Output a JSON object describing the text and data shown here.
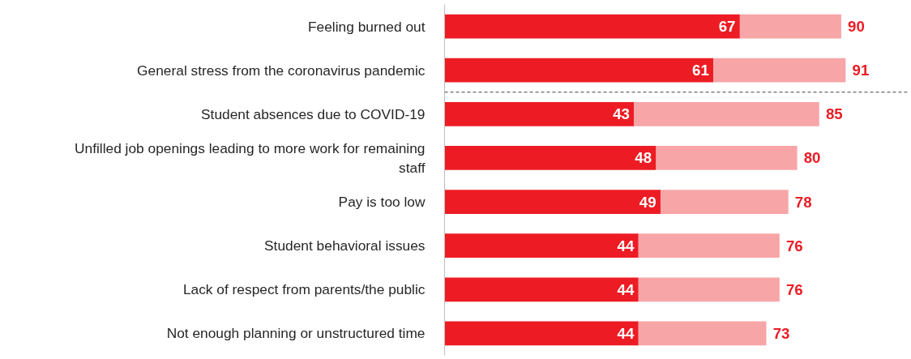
{
  "chart_data": {
    "type": "bar",
    "orientation": "horizontal",
    "stacked": true,
    "categories": [
      "Feeling burned out",
      "General stress from the coronavirus pandemic",
      "Student absences due to COVID-19",
      "Unfilled job openings leading to more work for remaining staff",
      "Pay is too low",
      "Student behavioral issues",
      "Lack of respect from parents/the public",
      "Not enough planning or unstructured time"
    ],
    "series": [
      {
        "color": "#ed1c24",
        "values": [
          67,
          61,
          43,
          48,
          49,
          44,
          44,
          44
        ],
        "value_labels": [
          "67",
          "61",
          "43",
          "48",
          "49",
          "44",
          "44",
          "44"
        ]
      },
      {
        "color": "#f8a5a8",
        "values": [
          23,
          30,
          42,
          32,
          29,
          32,
          32,
          29
        ]
      }
    ],
    "totals": [
      "90",
      "91",
      "85",
      "80",
      "78",
      "76",
      "76",
      "73"
    ],
    "xlim": [
      0,
      105
    ],
    "tick_labels": "y",
    "grid": false
  }
}
